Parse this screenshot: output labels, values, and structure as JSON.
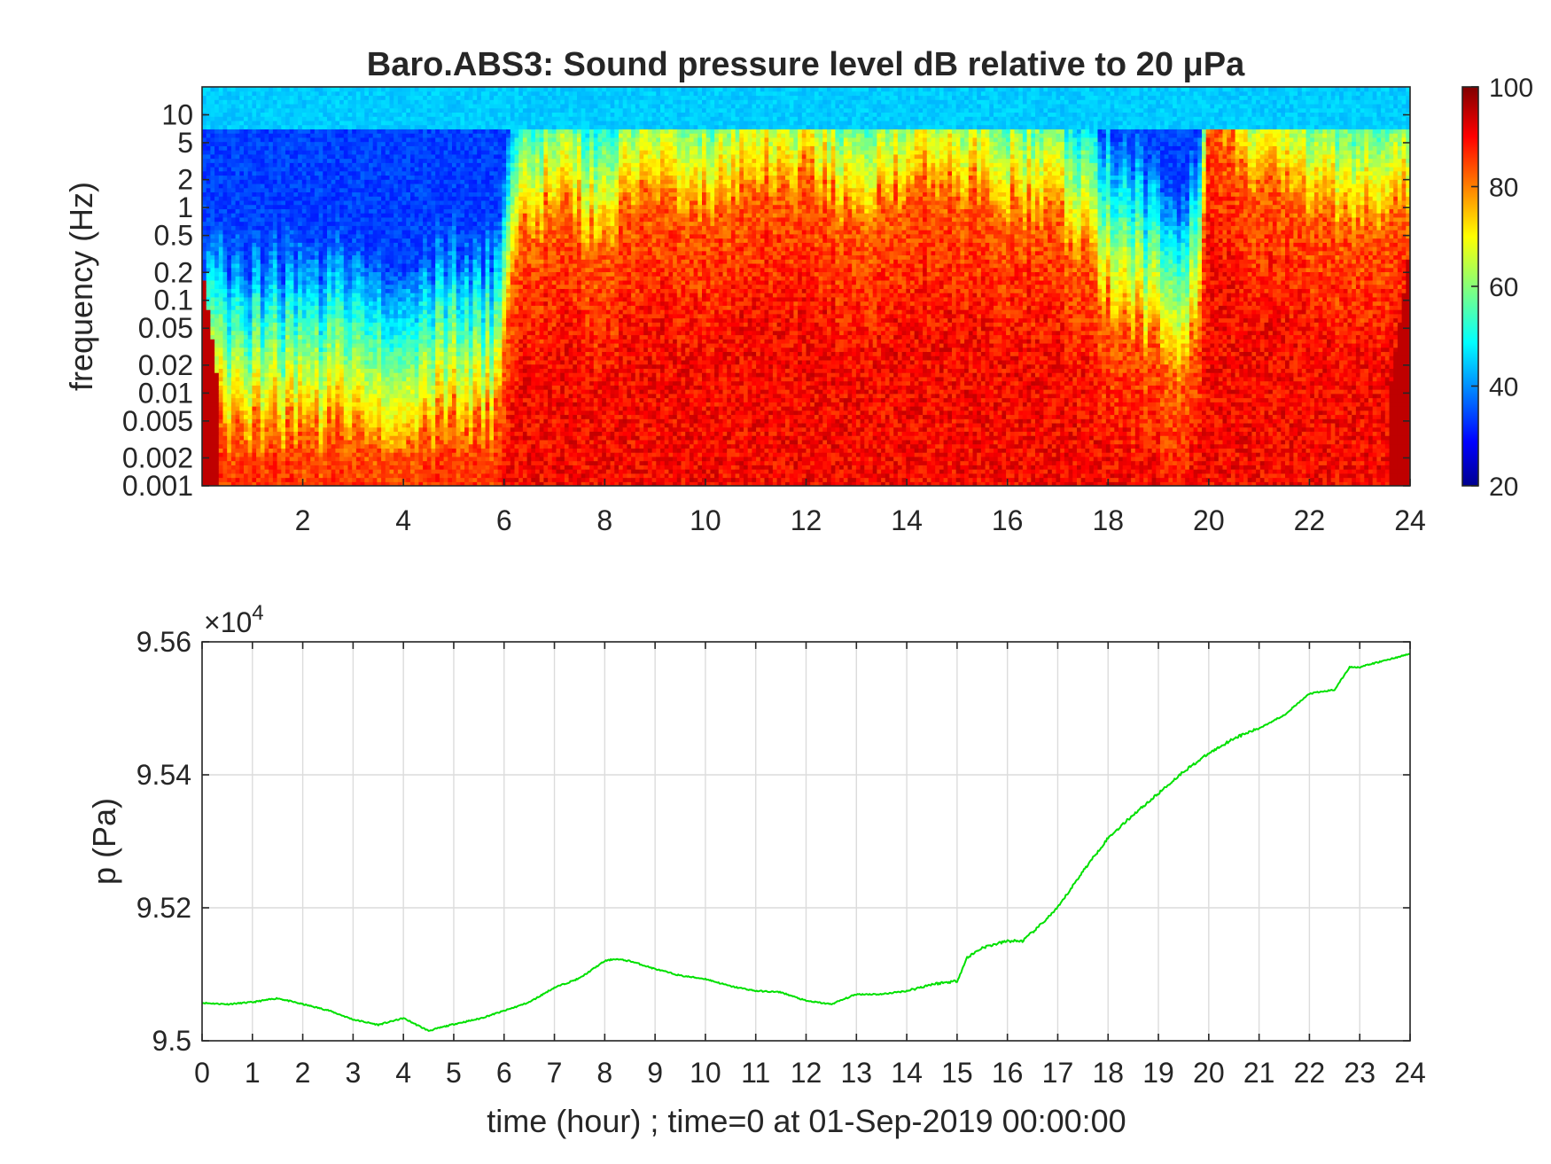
{
  "chart_data": [
    {
      "type": "heatmap",
      "title": "Baro.ABS3: Sound pressure level dB relative to 20 μPa",
      "ylabel": "frequency (Hz)",
      "y_scale": "log",
      "xlim": [
        0,
        24
      ],
      "ylim": [
        0.001,
        20
      ],
      "xticks": [
        2,
        4,
        6,
        8,
        10,
        12,
        14,
        16,
        18,
        20,
        22,
        24
      ],
      "yticks": [
        0.001,
        0.002,
        0.005,
        0.01,
        0.02,
        0.05,
        0.1,
        0.2,
        0.5,
        1,
        2,
        5,
        10
      ],
      "ytick_labels": [
        "0.001",
        "0.002",
        "0.005",
        "0.01",
        "0.02",
        "0.05",
        "0.1",
        "0.2",
        "0.5",
        "1",
        "2",
        "5",
        "10"
      ],
      "colorbar": {
        "min": 20,
        "max": 100,
        "ticks": [
          20,
          40,
          60,
          80,
          100
        ],
        "colormap": "jet"
      },
      "activity_profile": {
        "x": [
          0,
          1,
          2,
          3,
          4,
          5,
          5.8,
          6.3,
          7,
          8,
          9,
          10,
          11,
          12,
          13,
          14,
          15,
          16,
          17,
          18,
          18.6,
          19.3,
          19.8,
          20,
          21,
          22,
          23,
          24
        ],
        "high_level_top_frequency_hz": [
          0.005,
          0.004,
          0.004,
          0.004,
          0.004,
          0.005,
          0.005,
          0.5,
          1,
          0.5,
          2,
          1,
          2,
          2,
          1,
          2,
          2,
          1,
          1,
          0.1,
          0.05,
          0.02,
          0.05,
          10,
          2,
          1,
          1,
          1
        ]
      }
    },
    {
      "type": "line",
      "ylabel": "p (Pa)",
      "xlabel": "time (hour) ; time=0 at 01-Sep-2019 00:00:00",
      "xlim": [
        0,
        24
      ],
      "ylim": [
        95000,
        95600
      ],
      "y_exponent_label": "×10",
      "y_exponent": "4",
      "xticks": [
        0,
        1,
        2,
        3,
        4,
        5,
        6,
        7,
        8,
        9,
        10,
        11,
        12,
        13,
        14,
        15,
        16,
        17,
        18,
        19,
        20,
        21,
        22,
        23,
        24
      ],
      "yticks": [
        95000,
        95200,
        95400,
        95600
      ],
      "ytick_labels": [
        "9.5",
        "9.52",
        "9.54",
        "9.56"
      ],
      "grid": true,
      "line_color": "#00e000",
      "series": [
        {
          "x": [
            0,
            0.5,
            1,
            1.5,
            2,
            2.5,
            3,
            3.5,
            4,
            4.5,
            5,
            5.5,
            6,
            6.5,
            7,
            7.5,
            8,
            8.2,
            8.5,
            9,
            9.5,
            10,
            10.5,
            11,
            11.5,
            12,
            12.5,
            13,
            13.5,
            14,
            14.5,
            15,
            15.2,
            15.5,
            16,
            16.3,
            16.6,
            17,
            17.5,
            18,
            18.5,
            19,
            19.5,
            20,
            20.5,
            21,
            21.5,
            22,
            22.5,
            22.8,
            23,
            23.5,
            24
          ],
          "y": [
            95057,
            95055,
            95058,
            95064,
            95055,
            95046,
            95032,
            95024,
            95034,
            95015,
            95025,
            95033,
            95045,
            95058,
            95080,
            95094,
            95120,
            95123,
            95120,
            95108,
            95098,
            95093,
            95082,
            95075,
            95073,
            95060,
            95055,
            95070,
            95070,
            95075,
            95085,
            95090,
            95125,
            95140,
            95150,
            95150,
            95170,
            95200,
            95255,
            95305,
            95340,
            95372,
            95405,
            95432,
            95455,
            95470,
            95490,
            95522,
            95528,
            95562,
            95562,
            95572,
            95582
          ]
        }
      ]
    }
  ]
}
